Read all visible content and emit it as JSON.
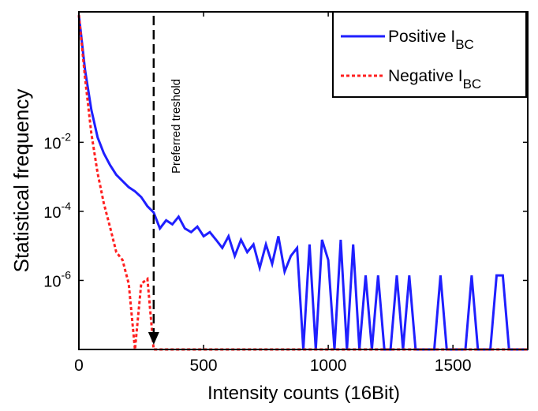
{
  "chart_data": {
    "type": "line",
    "xlabel": "Intensity counts (16Bit)",
    "ylabel": "Statistical frequency",
    "log_y": true,
    "xlim": [
      0,
      1800
    ],
    "xticks": [
      0,
      500,
      1000,
      1500
    ],
    "ylim": [
      1e-08,
      60
    ],
    "yticks": [
      {
        "value": 0.01,
        "label": "10",
        "exponent": "-2"
      },
      {
        "value": 0.0001,
        "label": "10",
        "exponent": "-4"
      },
      {
        "value": 1e-06,
        "label": "10",
        "exponent": "-6"
      }
    ],
    "legend": "upper right",
    "annotation": {
      "text": "Preferred treshold",
      "x": 300
    },
    "x": [
      0,
      25,
      50,
      75,
      100,
      125,
      150,
      175,
      200,
      225,
      250,
      275,
      300,
      325,
      350,
      375,
      400,
      425,
      450,
      475,
      500,
      525,
      550,
      575,
      600,
      625,
      650,
      675,
      700,
      725,
      750,
      775,
      800,
      825,
      850,
      875,
      900,
      925,
      950,
      975,
      1000,
      1025,
      1050,
      1075,
      1100,
      1125,
      1150,
      1175,
      1200,
      1225,
      1250,
      1275,
      1300,
      1325,
      1350,
      1375,
      1400,
      1425,
      1450,
      1475,
      1500,
      1525,
      1550,
      1575,
      1600,
      1625,
      1650,
      1675,
      1700,
      1725,
      1750,
      1775,
      1800
    ],
    "series": [
      {
        "name": "Positive I",
        "name_sub": "BC",
        "color": "#1f1fff",
        "dash": false,
        "values": [
          48,
          1.2,
          0.087,
          0.014,
          0.0048,
          0.0022,
          0.00115,
          0.00076,
          0.0005,
          0.00038,
          0.00026,
          0.00014,
          9.3e-05,
          3.2e-05,
          5.5e-05,
          4.2e-05,
          7e-05,
          3.2e-05,
          2.5e-05,
          3.6e-05,
          1.9e-05,
          2.5e-05,
          1.5e-05,
          8.7e-06,
          1.9e-05,
          5.1e-06,
          1.5e-05,
          6.6e-06,
          1.1e-05,
          2.3e-06,
          1.1e-05,
          3e-06,
          1.9e-05,
          1.8e-06,
          5.1e-06,
          8.7e-06,
          1e-08,
          1.1e-05,
          1e-08,
          1.5e-05,
          3.9e-06,
          1e-08,
          1.5e-05,
          1e-08,
          1.1e-05,
          1e-08,
          1.4e-06,
          1e-08,
          1.4e-06,
          1e-08,
          1e-08,
          1.4e-06,
          1e-08,
          1.4e-06,
          1e-08,
          1e-08,
          1e-08,
          1e-08,
          1.4e-06,
          1e-08,
          1e-08,
          1e-08,
          1e-08,
          1.4e-06,
          1e-08,
          1e-08,
          1e-08,
          1.4e-06,
          1.4e-06,
          1e-08,
          1e-08,
          1e-08,
          1e-08
        ]
      },
      {
        "name": "Negative I",
        "name_sub": "BC",
        "color": "#ff2020",
        "dash": true,
        "values": [
          48,
          0.7,
          0.018,
          0.0013,
          0.00017,
          3.5e-05,
          6.6e-06,
          3.9e-06,
          8e-07,
          1e-08,
          8e-07,
          1.1e-06,
          1e-08,
          1e-08,
          1e-08,
          1e-08,
          1e-08,
          1e-08,
          1e-08,
          1e-08,
          1e-08,
          1e-08,
          1e-08,
          1e-08,
          1e-08,
          1e-08,
          1e-08,
          1e-08,
          1e-08,
          1e-08,
          1e-08,
          1e-08,
          1e-08,
          1e-08,
          1e-08,
          1e-08,
          1e-08,
          1e-08,
          1e-08,
          1e-08,
          1e-08,
          1e-08,
          1e-08,
          1e-08,
          1e-08,
          1e-08,
          1e-08,
          1e-08,
          1e-08,
          1e-08,
          1e-08,
          1e-08,
          1e-08,
          1e-08,
          1e-08,
          1e-08,
          1e-08,
          1e-08,
          1e-08,
          1e-08,
          1e-08,
          1e-08,
          1e-08,
          1e-08,
          1e-08,
          1e-08,
          1e-08,
          1e-08,
          1e-08,
          1e-08,
          1e-08,
          1e-08,
          1e-08
        ]
      }
    ]
  }
}
